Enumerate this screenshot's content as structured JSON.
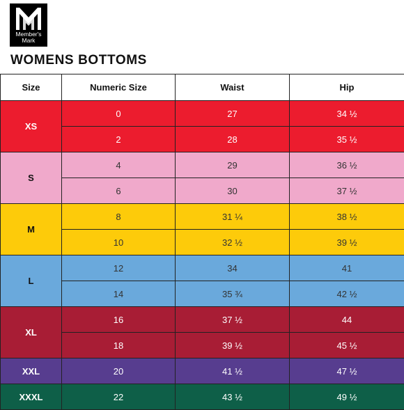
{
  "brand": {
    "logo_line1": "Member's",
    "logo_line2": "Mark"
  },
  "title": "WOMENS BOTTOMS",
  "table": {
    "headers": [
      "Size",
      "Numeric Size",
      "Waist",
      "Hip"
    ],
    "groups": [
      {
        "size": "XS",
        "bg": "#ec1c2e",
        "fg": "#ffffff",
        "size_fg": "#ffffff",
        "rows": [
          {
            "numeric": "0",
            "waist": "27",
            "hip": "34 ½"
          },
          {
            "numeric": "2",
            "waist": "28",
            "hip": "35 ½"
          }
        ]
      },
      {
        "size": "S",
        "bg": "#f0a9cb",
        "fg": "#333333",
        "size_fg": "#111111",
        "rows": [
          {
            "numeric": "4",
            "waist": "29",
            "hip": "36 ½"
          },
          {
            "numeric": "6",
            "waist": "30",
            "hip": "37 ½"
          }
        ]
      },
      {
        "size": "M",
        "bg": "#fdcb0a",
        "fg": "#333333",
        "size_fg": "#111111",
        "rows": [
          {
            "numeric": "8",
            "waist": "31 ¼",
            "hip": "38 ½"
          },
          {
            "numeric": "10",
            "waist": "32 ½",
            "hip": "39 ½"
          }
        ]
      },
      {
        "size": "L",
        "bg": "#6aa9dc",
        "fg": "#333333",
        "size_fg": "#111111",
        "rows": [
          {
            "numeric": "12",
            "waist": "34",
            "hip": "41"
          },
          {
            "numeric": "14",
            "waist": "35 ¾",
            "hip": "42 ½"
          }
        ]
      },
      {
        "size": "XL",
        "bg": "#a81d35",
        "fg": "#ffffff",
        "size_fg": "#ffffff",
        "rows": [
          {
            "numeric": "16",
            "waist": "37 ½",
            "hip": "44"
          },
          {
            "numeric": "18",
            "waist": "39 ½",
            "hip": "45 ½"
          }
        ]
      },
      {
        "size": "XXL",
        "bg": "#573d8f",
        "fg": "#ffffff",
        "size_fg": "#ffffff",
        "rows": [
          {
            "numeric": "20",
            "waist": "41 ½",
            "hip": "47 ½"
          }
        ]
      },
      {
        "size": "XXXL",
        "bg": "#0e5f48",
        "fg": "#ffffff",
        "size_fg": "#ffffff",
        "rows": [
          {
            "numeric": "22",
            "waist": "43 ½",
            "hip": "49 ½"
          }
        ]
      }
    ]
  }
}
